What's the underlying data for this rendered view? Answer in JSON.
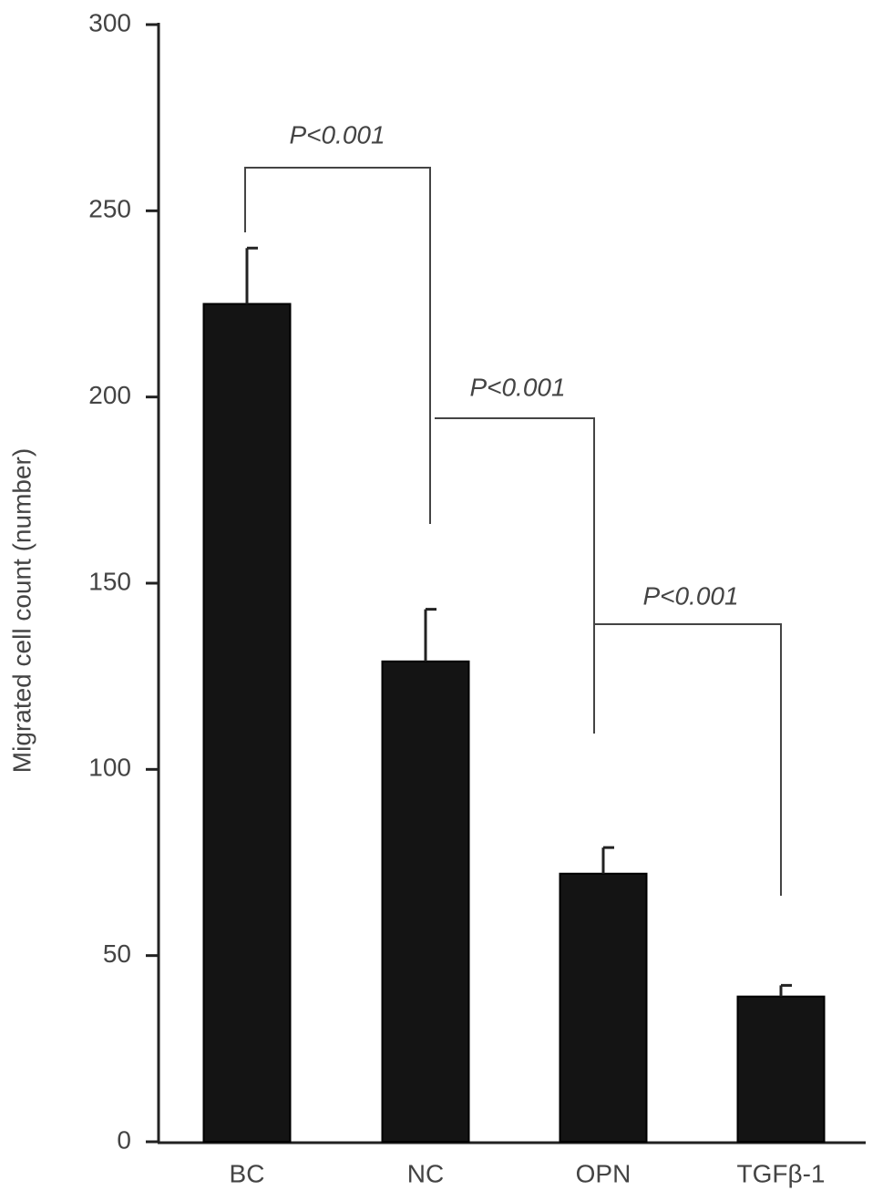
{
  "chart_data": {
    "type": "bar",
    "y_label": "Migrated cell count (number)",
    "categories": [
      "BC",
      "NC",
      "OPN",
      "TGFβ-1"
    ],
    "values": [
      225,
      129,
      72,
      39
    ],
    "errors": [
      15,
      14,
      7,
      3
    ],
    "color": "#141414",
    "ylim": [
      0,
      300
    ],
    "yticks": [
      0,
      50,
      100,
      150,
      200,
      250,
      300
    ],
    "annotations": [
      {
        "text": "P<0.001",
        "from": "BC",
        "to": "NC"
      },
      {
        "text": "P<0.001",
        "from": "NC",
        "to": "OPN"
      },
      {
        "text": "P<0.001",
        "from": "OPN",
        "to": "TGFβ-1"
      }
    ]
  }
}
